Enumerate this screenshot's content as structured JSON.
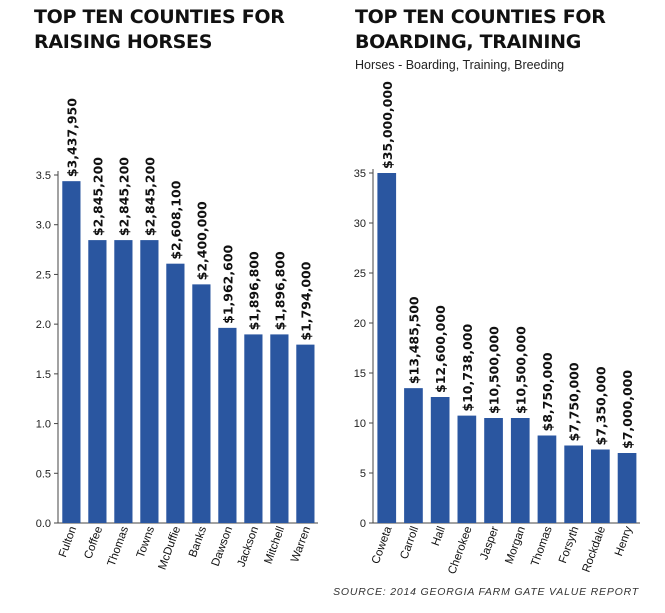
{
  "chart_data": [
    {
      "type": "bar",
      "title": "TOP TEN COUNTIES FOR RAISING HORSES",
      "title_lines": [
        "TOP TEN COUNTIES FOR",
        "RAISING HORSES"
      ],
      "subtitle": "",
      "xlabel": "",
      "ylabel": "",
      "categories": [
        "Fulton",
        "Coffee",
        "Thomas",
        "Towns",
        "McDuffie",
        "Banks",
        "Dawson",
        "Jackson",
        "Mitchell",
        "Warren"
      ],
      "values": [
        3.43795,
        2.8452,
        2.8452,
        2.8452,
        2.6081,
        2.4,
        1.9626,
        1.8968,
        1.8968,
        1.794
      ],
      "data_labels": [
        "$3,437,950",
        "$2,845,200",
        "$2,845,200",
        "$2,845,200",
        "$2,608,100",
        "$2,400,000",
        "$1,962,600",
        "$1,896,800",
        "$1,896,800",
        "$1,794,000"
      ],
      "yticks": [
        0,
        0.5,
        1.0,
        1.5,
        2.0,
        2.5,
        3.0,
        3.5
      ],
      "ytick_labels": [
        "0.0",
        "0.5",
        "1.0",
        "1.5",
        "2.0",
        "2.5",
        "3.0",
        "3.5"
      ],
      "ylim": [
        0,
        3.5
      ],
      "grid": false,
      "bar_color": "#2a56a0"
    },
    {
      "type": "bar",
      "title": "TOP TEN COUNTIES FOR BOARDING, TRAINING",
      "title_lines": [
        "TOP TEN COUNTIES FOR",
        "BOARDING, TRAINING"
      ],
      "subtitle": "Horses - Boarding, Training, Breeding",
      "xlabel": "",
      "ylabel": "",
      "categories": [
        "Coweta",
        "Carroll",
        "Hall",
        "Cherokee",
        "Jasper",
        "Morgan",
        "Thomas",
        "Forsyth",
        "Rockdale",
        "Henry"
      ],
      "values": [
        35.0,
        13.4855,
        12.6,
        10.738,
        10.5,
        10.5,
        8.75,
        7.75,
        7.35,
        7.0
      ],
      "data_labels": [
        "$35,000,000",
        "$13,485,500",
        "$12,600,000",
        "$10,738,000",
        "$10,500,000",
        "$10,500,000",
        "$8,750,000",
        "$7,750,000",
        "$7,350,000",
        "$7,000,000"
      ],
      "yticks": [
        0,
        5,
        10,
        15,
        20,
        25,
        30,
        35
      ],
      "ytick_labels": [
        "0",
        "5",
        "10",
        "15",
        "20",
        "25",
        "30",
        "35"
      ],
      "ylim": [
        0,
        35
      ],
      "grid": false,
      "bar_color": "#2a56a0"
    }
  ],
  "source_note": "SOURCE: 2014 GEORGIA FARM GATE VALUE REPORT"
}
